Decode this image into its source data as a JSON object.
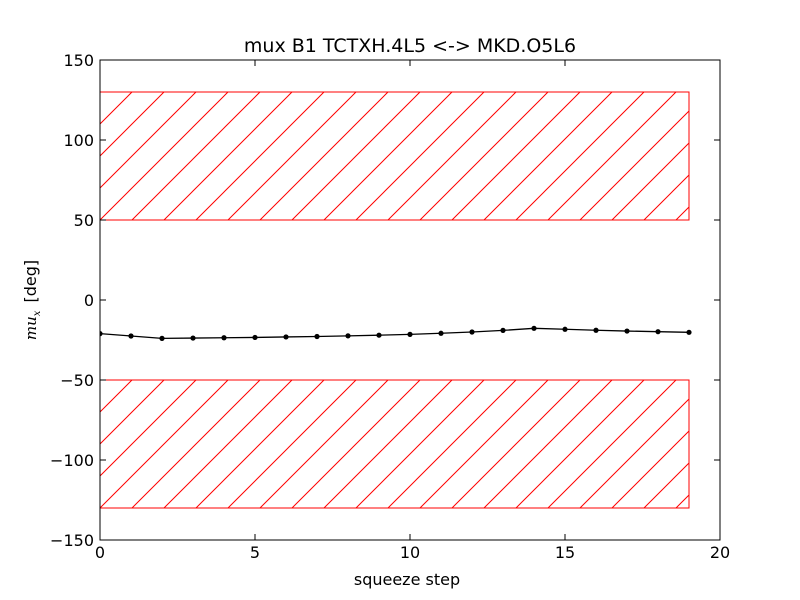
{
  "chart_data": {
    "type": "line",
    "title": "mux B1 TCTXH.4L5 <-> MKD.O5L6",
    "xlabel": "squeeze step",
    "ylabel": {
      "symbol": "mu",
      "subscript": "x",
      "unit": "[deg]"
    },
    "xlim": [
      0,
      20
    ],
    "ylim": [
      -150,
      150
    ],
    "xticks": [
      0,
      5,
      10,
      15,
      20
    ],
    "xtick_labels": [
      "0",
      "5",
      "10",
      "15",
      "20"
    ],
    "yticks": [
      150,
      100,
      50,
      0,
      -50,
      -100,
      -150
    ],
    "ytick_labels": [
      "150",
      "100",
      "50",
      "0",
      "−50",
      "−100",
      "−150"
    ],
    "grid": false,
    "series": [
      {
        "color": "#000000",
        "marker": "dot",
        "x": [
          0,
          1,
          2,
          3,
          4,
          5,
          6,
          7,
          8,
          9,
          10,
          11,
          12,
          13,
          14,
          15,
          16,
          17,
          18,
          19
        ],
        "y": [
          -21.0,
          -22.5,
          -24.0,
          -23.8,
          -23.6,
          -23.4,
          -23.1,
          -22.8,
          -22.4,
          -22.0,
          -21.5,
          -20.8,
          -20.0,
          -19.0,
          -17.7,
          -18.3,
          -18.9,
          -19.4,
          -19.8,
          -20.2
        ]
      }
    ],
    "regions": [
      {
        "x0": 0,
        "x1": 19,
        "y0": 50,
        "y1": 130,
        "color": "#ff0000",
        "hatch": "diagonal"
      },
      {
        "x0": 0,
        "x1": 19,
        "y0": -130,
        "y1": -50,
        "color": "#ff0000",
        "hatch": "diagonal"
      }
    ]
  }
}
